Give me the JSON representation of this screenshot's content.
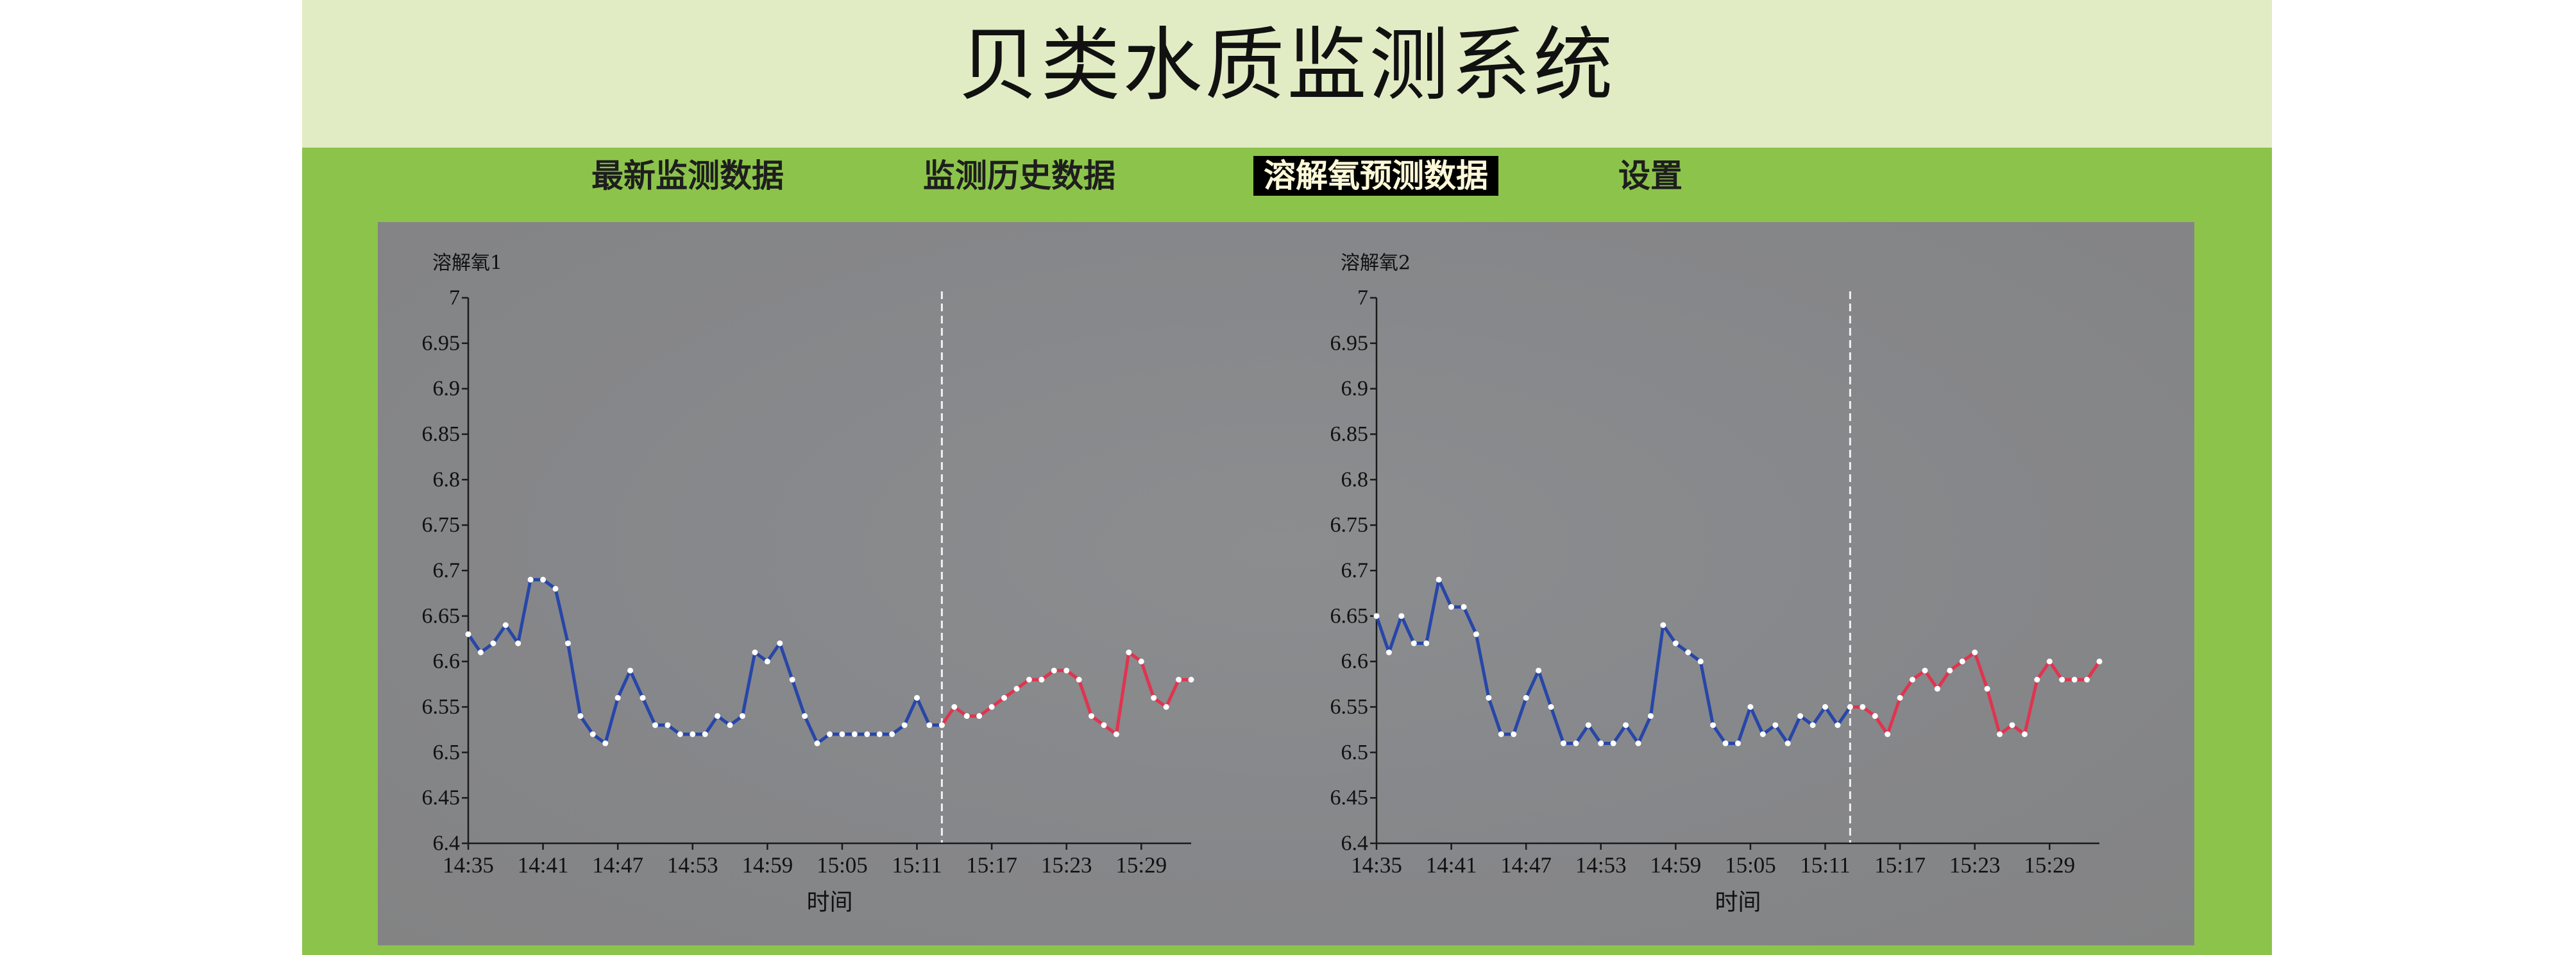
{
  "app": {
    "title": "贝类水质监测系统"
  },
  "nav": {
    "tabs": [
      {
        "label": "最新监测数据",
        "active": false
      },
      {
        "label": "监测历史数据",
        "active": false
      },
      {
        "label": "溶解氧预测数据",
        "active": true
      },
      {
        "label": "设置",
        "active": false
      }
    ]
  },
  "theme": {
    "header_bg": "#e1ecc4",
    "bar_bg": "#8cc44b",
    "title_text": "#111111",
    "tab_text": "#1e1e1e",
    "active_tab_bg": "#000000",
    "active_tab_text": "#fdf8d8"
  },
  "chart_data": [
    {
      "type": "line",
      "ylabel": "溶解氧1",
      "xlabel": "时间",
      "ylim": [
        6.4,
        7
      ],
      "xlim": [
        "14:35",
        "15:33"
      ],
      "grid": false,
      "yticks": [
        "7",
        "6.95",
        "6.9",
        "6.85",
        "6.8",
        "6.75",
        "6.7",
        "6.65",
        "6.6",
        "6.55",
        "6.5",
        "6.45",
        "6.4"
      ],
      "xticks": [
        "14:35",
        "14:41",
        "14:47",
        "14:53",
        "14:59",
        "15:05",
        "15:11",
        "15:17",
        "15:23",
        "15:29"
      ],
      "series": [
        {
          "color": "#2746a8",
          "points": [
            [
              "14:35",
              6.63
            ],
            [
              "14:36",
              6.61
            ],
            [
              "14:37",
              6.62
            ],
            [
              "14:38",
              6.64
            ],
            [
              "14:39",
              6.62
            ],
            [
              "14:40",
              6.69
            ],
            [
              "14:41",
              6.69
            ],
            [
              "14:42",
              6.68
            ],
            [
              "14:43",
              6.62
            ],
            [
              "14:44",
              6.54
            ],
            [
              "14:45",
              6.52
            ],
            [
              "14:46",
              6.51
            ],
            [
              "14:47",
              6.56
            ],
            [
              "14:48",
              6.59
            ],
            [
              "14:49",
              6.56
            ],
            [
              "14:50",
              6.53
            ],
            [
              "14:51",
              6.53
            ],
            [
              "14:52",
              6.52
            ],
            [
              "14:53",
              6.52
            ],
            [
              "14:54",
              6.52
            ],
            [
              "14:55",
              6.54
            ],
            [
              "14:56",
              6.53
            ],
            [
              "14:57",
              6.54
            ],
            [
              "14:58",
              6.61
            ],
            [
              "14:59",
              6.6
            ],
            [
              "15:00",
              6.62
            ],
            [
              "15:01",
              6.58
            ],
            [
              "15:02",
              6.54
            ],
            [
              "15:03",
              6.51
            ],
            [
              "15:04",
              6.52
            ],
            [
              "15:05",
              6.52
            ],
            [
              "15:06",
              6.52
            ],
            [
              "15:07",
              6.52
            ],
            [
              "15:08",
              6.52
            ],
            [
              "15:09",
              6.52
            ],
            [
              "15:10",
              6.53
            ],
            [
              "15:11",
              6.56
            ],
            [
              "15:12",
              6.53
            ],
            [
              "15:13",
              6.53
            ]
          ]
        },
        {
          "color": "#e0344f",
          "points": [
            [
              "15:13",
              6.53
            ],
            [
              "15:14",
              6.55
            ],
            [
              "15:15",
              6.54
            ],
            [
              "15:16",
              6.54
            ],
            [
              "15:17",
              6.55
            ],
            [
              "15:18",
              6.56
            ],
            [
              "15:19",
              6.57
            ],
            [
              "15:20",
              6.58
            ],
            [
              "15:21",
              6.58
            ],
            [
              "15:22",
              6.59
            ],
            [
              "15:23",
              6.59
            ],
            [
              "15:24",
              6.58
            ],
            [
              "15:25",
              6.54
            ],
            [
              "15:26",
              6.53
            ],
            [
              "15:27",
              6.52
            ],
            [
              "15:28",
              6.61
            ],
            [
              "15:29",
              6.6
            ],
            [
              "15:30",
              6.56
            ],
            [
              "15:31",
              6.55
            ],
            [
              "15:32",
              6.58
            ],
            [
              "15:33",
              6.58
            ]
          ]
        }
      ]
    },
    {
      "type": "line",
      "ylabel": "溶解氧2",
      "xlabel": "时间",
      "ylim": [
        6.4,
        7
      ],
      "xlim": [
        "14:35",
        "15:33"
      ],
      "grid": false,
      "yticks": [
        "7",
        "6.95",
        "6.9",
        "6.85",
        "6.8",
        "6.75",
        "6.7",
        "6.65",
        "6.6",
        "6.55",
        "6.5",
        "6.45",
        "6.4"
      ],
      "xticks": [
        "14:35",
        "14:41",
        "14:47",
        "14:53",
        "14:59",
        "15:05",
        "15:11",
        "15:17",
        "15:23",
        "15:29"
      ],
      "series": [
        {
          "color": "#2746a8",
          "points": [
            [
              "14:35",
              6.65
            ],
            [
              "14:36",
              6.61
            ],
            [
              "14:37",
              6.65
            ],
            [
              "14:38",
              6.62
            ],
            [
              "14:39",
              6.62
            ],
            [
              "14:40",
              6.69
            ],
            [
              "14:41",
              6.66
            ],
            [
              "14:42",
              6.66
            ],
            [
              "14:43",
              6.63
            ],
            [
              "14:44",
              6.56
            ],
            [
              "14:45",
              6.52
            ],
            [
              "14:46",
              6.52
            ],
            [
              "14:47",
              6.56
            ],
            [
              "14:48",
              6.59
            ],
            [
              "14:49",
              6.55
            ],
            [
              "14:50",
              6.51
            ],
            [
              "14:51",
              6.51
            ],
            [
              "14:52",
              6.53
            ],
            [
              "14:53",
              6.51
            ],
            [
              "14:54",
              6.51
            ],
            [
              "14:55",
              6.53
            ],
            [
              "14:56",
              6.51
            ],
            [
              "14:57",
              6.54
            ],
            [
              "14:58",
              6.64
            ],
            [
              "14:59",
              6.62
            ],
            [
              "15:00",
              6.61
            ],
            [
              "15:01",
              6.6
            ],
            [
              "15:02",
              6.53
            ],
            [
              "15:03",
              6.51
            ],
            [
              "15:04",
              6.51
            ],
            [
              "15:05",
              6.55
            ],
            [
              "15:06",
              6.52
            ],
            [
              "15:07",
              6.53
            ],
            [
              "15:08",
              6.51
            ],
            [
              "15:09",
              6.54
            ],
            [
              "15:10",
              6.53
            ],
            [
              "15:11",
              6.55
            ],
            [
              "15:12",
              6.53
            ],
            [
              "15:13",
              6.55
            ]
          ]
        },
        {
          "color": "#e0344f",
          "points": [
            [
              "15:13",
              6.55
            ],
            [
              "15:14",
              6.55
            ],
            [
              "15:15",
              6.54
            ],
            [
              "15:16",
              6.52
            ],
            [
              "15:17",
              6.56
            ],
            [
              "15:18",
              6.58
            ],
            [
              "15:19",
              6.59
            ],
            [
              "15:20",
              6.57
            ],
            [
              "15:21",
              6.59
            ],
            [
              "15:22",
              6.6
            ],
            [
              "15:23",
              6.61
            ],
            [
              "15:24",
              6.57
            ],
            [
              "15:25",
              6.52
            ],
            [
              "15:26",
              6.53
            ],
            [
              "15:27",
              6.52
            ],
            [
              "15:28",
              6.58
            ],
            [
              "15:29",
              6.6
            ],
            [
              "15:30",
              6.58
            ],
            [
              "15:31",
              6.58
            ],
            [
              "15:32",
              6.58
            ],
            [
              "15:33",
              6.6
            ]
          ]
        }
      ]
    }
  ]
}
